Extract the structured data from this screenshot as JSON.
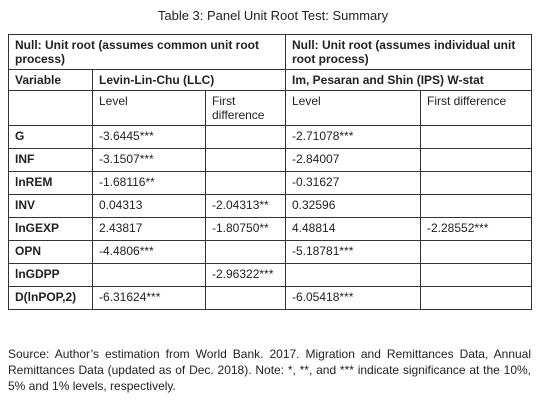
{
  "title": "Table 3:  Panel Unit Root Test: Summary",
  "table": {
    "null_headers": [
      "Null: Unit root (assumes common unit root process)",
      "Null: Unit root (assumes individual unit root process)"
    ],
    "variable_header": "Variable",
    "method_headers": [
      "Levin-Lin-Chu (LLC)",
      "Im, Pesaran and Shin (IPS) W-stat"
    ],
    "sub_headers": [
      "Level",
      "First difference",
      "Level",
      "First difference"
    ],
    "rows": [
      [
        "G",
        "-3.6445***",
        null,
        "-2.71078***",
        null
      ],
      [
        "INF",
        "-3.1507***",
        null,
        "-2.84007",
        null
      ],
      [
        "lnREM",
        "-1.68116**",
        null,
        "-0.31627",
        null
      ],
      [
        "INV",
        "0.04313",
        "-2.04313**",
        "0.32596",
        null
      ],
      [
        "lnGEXP",
        "2.43817",
        "-1.80750**",
        "4.48814",
        "-2.28552***"
      ],
      [
        "OPN",
        "-4.4806***",
        null,
        "-5.18781***",
        null
      ],
      [
        "lnGDPP",
        null,
        "-2.96322***",
        null,
        null
      ],
      [
        "D(lnPOP,2)",
        "-6.31624***",
        null,
        "-6.05418***",
        null
      ]
    ]
  },
  "note": "Source: Author’s estimation from World Bank. 2017. Migration and Remittances Data, Annual Remittances Data (updated as of Dec. 2018). Note: *, **, and *** indicate significance at the 10%, 5% and 1% levels, respectively."
}
